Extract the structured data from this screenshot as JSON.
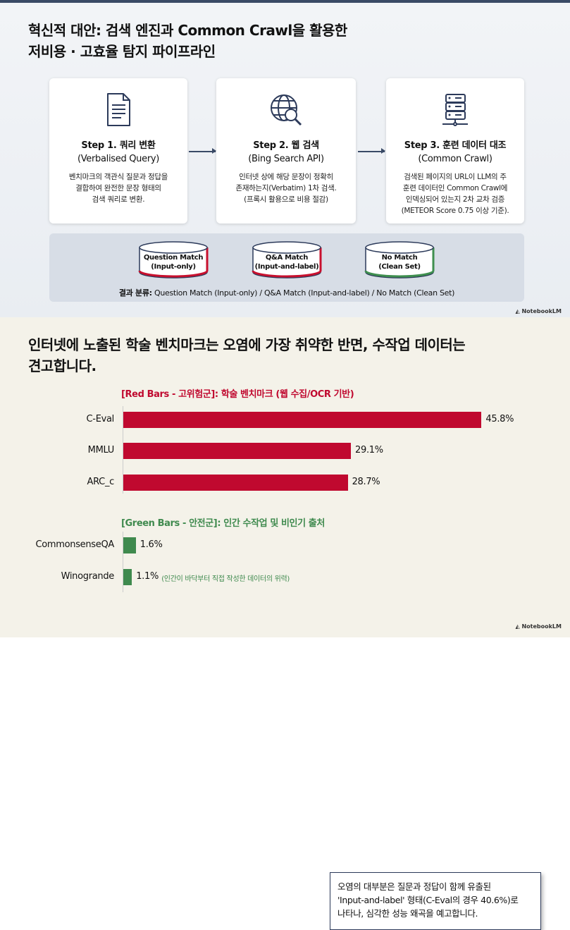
{
  "top": {
    "title_line1": "혁신적 대안: 검색 엔진과 Common Crawl을 활용한",
    "title_line2": "저비용 · 고효율 탐지 파이프라인",
    "steps": [
      {
        "icon": "document-icon",
        "title": "Step 1. 쿼리 변환",
        "subtitle": "(Verbalised Query)",
        "desc": [
          "벤치마크의 객관식 질문과 정답을",
          "결합하여 완전한 문장 형태의",
          "검색 쿼리로 변환."
        ]
      },
      {
        "icon": "globe-search-icon",
        "title": "Step 2. 웹 검색",
        "subtitle": "(Bing Search API)",
        "desc": [
          "인터넷 상에 해당 문장이 정확히",
          "존재하는지(Verbatim) 1차 검색.",
          "(프록시 활용으로 비용 절감)"
        ]
      },
      {
        "icon": "server-icon",
        "title": "Step 3. 훈련 데이터 대조",
        "subtitle": "(Common Crawl)",
        "desc": [
          "검색된 페이지의 URL이 LLM의 주",
          "훈련 데이터인 Common Crawl에",
          "인덱싱되어 있는지 2차 교차 검증",
          "(METEOR Score 0.75 이상 기준)."
        ]
      }
    ],
    "buckets": [
      {
        "line1": "Question Match",
        "line2": "(Input-only)",
        "color": "#c8102e"
      },
      {
        "line1": "Q&A Match",
        "line2": "(Input-and-label)",
        "color": "#c8102e"
      },
      {
        "line1": "No Match",
        "line2": "(Clean Set)",
        "color": "#3f8f4f"
      }
    ],
    "result_label": "결과 분류:",
    "result_text": " Question Match (Input-only) / Q&A Match (Input-and-label) / No Match (Clean Set)",
    "logo": "NotebookLM"
  },
  "bottom": {
    "title_line1": "인터넷에 노출된 학술 벤치마크는 오염에 가장 취약한 반면, 수작업 데이터는",
    "title_line2": "견고합니다.",
    "logo": "NotebookLM",
    "note": [
      "오염의 대부분은 질문과 정답이 함께 유출된",
      "'Input-and-label' 형태(C-Eval의 경우 40.6%)로",
      "나타나, 심각한 성능 왜곡을 예고합니다."
    ]
  },
  "chart_data": {
    "type": "bar",
    "orientation": "horizontal",
    "groups": [
      {
        "name": "[Red Bars - 고위험군]: 학술 벤치마크 (웹 수집/OCR 기반)",
        "color": "#c0092f",
        "categories": [
          "C-Eval",
          "MMLU",
          "ARC_c"
        ],
        "values": [
          45.8,
          29.1,
          28.7
        ],
        "labels": [
          "45.8%",
          "29.1%",
          "28.7%"
        ]
      },
      {
        "name": "[Green Bars - 안전군]: 인간 수작업 및 비인기 출처",
        "color": "#3f8a4e",
        "categories": [
          "CommonsenseQA",
          "Winogrande"
        ],
        "values": [
          1.6,
          1.1
        ],
        "labels": [
          "1.6%",
          "1.1%"
        ],
        "annotation": "(인간이 바닥부터 직접 작성한 데이터의 위력)"
      }
    ],
    "unit": "%"
  }
}
